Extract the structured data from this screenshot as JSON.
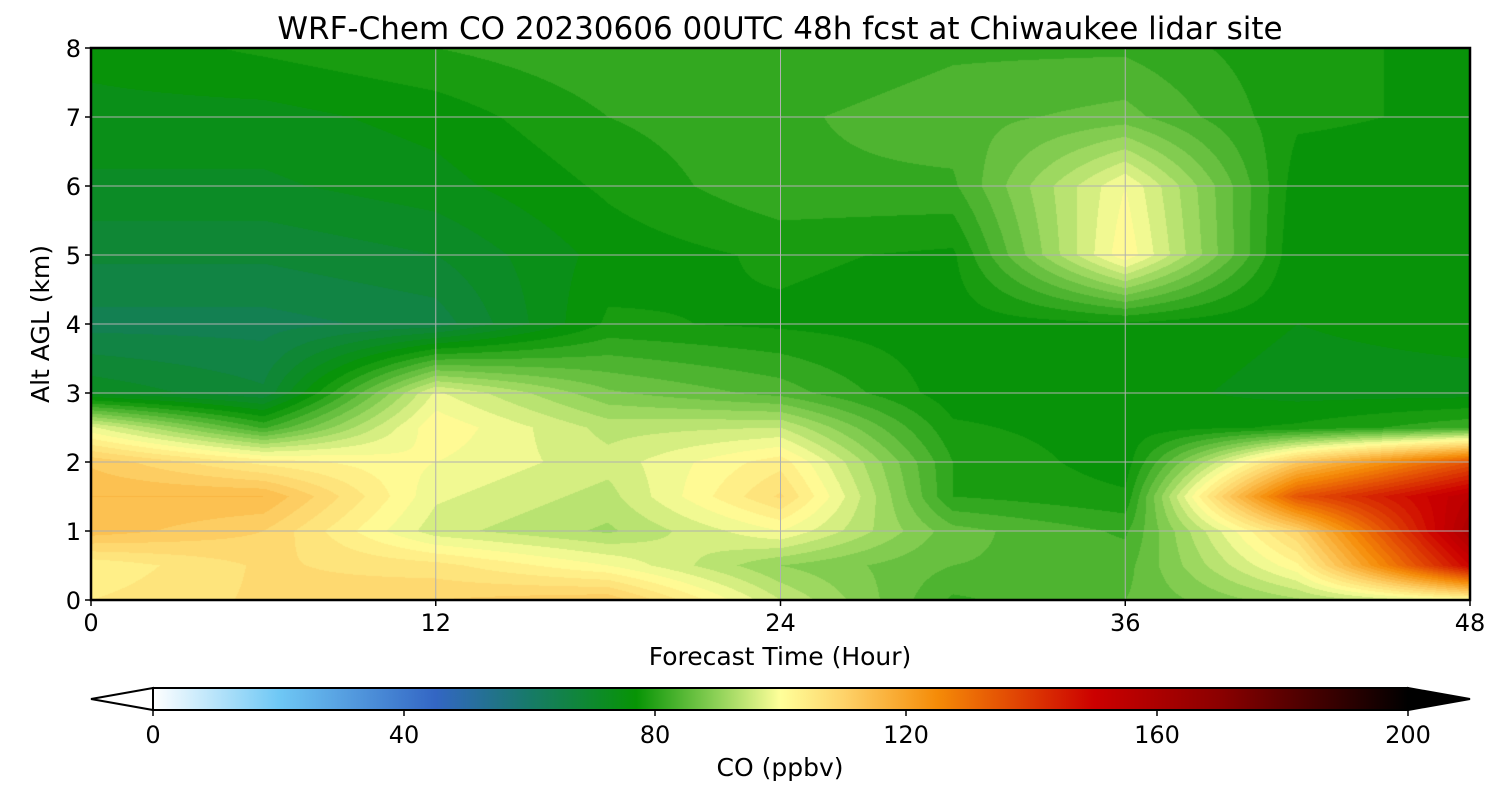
{
  "chart_data": {
    "type": "heatmap",
    "title": "WRF-Chem CO  20230606 00UTC 48h fcst at Chiwaukee lidar site",
    "xlabel": "Forecast Time (Hour)",
    "ylabel": "Alt AGL (km)",
    "xlim": [
      0,
      48
    ],
    "ylim": [
      0,
      8
    ],
    "xticks": [
      0,
      12,
      24,
      36,
      48
    ],
    "yticks": [
      0,
      1,
      2,
      3,
      4,
      5,
      6,
      7,
      8
    ],
    "grid": true,
    "colorbar": {
      "label": "CO  (ppbv)",
      "range": [
        0,
        200
      ],
      "ticks": [
        0,
        40,
        80,
        120,
        160,
        200
      ],
      "extend": "both",
      "stops": [
        {
          "value": 0,
          "color": "#ffffff"
        },
        {
          "value": 20,
          "color": "#6fc8f5"
        },
        {
          "value": 45,
          "color": "#3366c4"
        },
        {
          "value": 60,
          "color": "#177a68"
        },
        {
          "value": 77,
          "color": "#079405"
        },
        {
          "value": 90,
          "color": "#8fd258"
        },
        {
          "value": 100,
          "color": "#ffff9a"
        },
        {
          "value": 110,
          "color": "#fed36a"
        },
        {
          "value": 125,
          "color": "#f58b07"
        },
        {
          "value": 150,
          "color": "#cc0000"
        },
        {
          "value": 170,
          "color": "#8b0000"
        },
        {
          "value": 200,
          "color": "#000000"
        }
      ]
    },
    "field": {
      "x": [
        0,
        6,
        12,
        18,
        24,
        30,
        36,
        42,
        48
      ],
      "y": [
        0,
        0.5,
        1,
        1.5,
        2,
        2.5,
        3,
        4,
        5,
        6,
        7,
        8
      ],
      "z": [
        [
          105,
          108,
          110,
          112,
          95,
          82,
          85,
          92,
          100
        ],
        [
          103,
          108,
          106,
          100,
          90,
          85,
          84,
          102,
          150
        ],
        [
          114,
          110,
          96,
          92,
          100,
          86,
          82,
          110,
          160
        ],
        [
          115,
          115,
          98,
          94,
          108,
          80,
          78,
          135,
          155
        ],
        [
          112,
          104,
          100,
          96,
          104,
          80,
          76,
          112,
          135
        ],
        [
          98,
          82,
          102,
          94,
          95,
          78,
          76,
          78,
          82
        ],
        [
          72,
          68,
          98,
          88,
          84,
          76,
          76,
          74,
          74
        ],
        [
          64,
          64,
          66,
          78,
          77,
          76,
          77,
          75,
          76
        ],
        [
          68,
          68,
          70,
          76,
          78,
          77,
          102,
          75,
          76
        ],
        [
          72,
          72,
          74,
          78,
          82,
          82,
          100,
          76,
          76
        ],
        [
          74,
          74,
          76,
          80,
          82,
          84,
          86,
          78,
          77
        ],
        [
          76,
          78,
          80,
          82,
          80,
          82,
          82,
          78,
          77
        ]
      ]
    }
  }
}
